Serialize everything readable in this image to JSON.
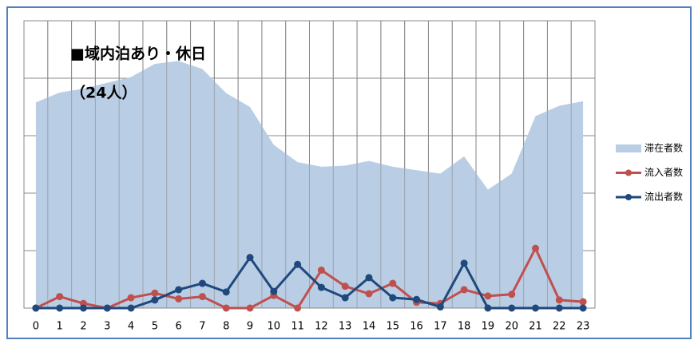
{
  "chart_data": {
    "type": "area-line",
    "title": "■域内泊あり・休日",
    "subtitle": "（24人）",
    "categories": [
      "0",
      "1",
      "2",
      "3",
      "4",
      "5",
      "6",
      "7",
      "8",
      "9",
      "10",
      "11",
      "12",
      "13",
      "14",
      "15",
      "16",
      "17",
      "18",
      "19",
      "20",
      "21",
      "22",
      "23"
    ],
    "series": [
      {
        "name": "滞在者数",
        "type": "area",
        "color": "#b9cde5",
        "values": [
          17.9,
          18.75,
          19.1,
          19.6,
          20.1,
          21.25,
          21.5,
          20.8,
          18.7,
          17.5,
          14.2,
          12.7,
          12.3,
          12.4,
          12.8,
          12.3,
          12.0,
          11.7,
          13.2,
          10.3,
          11.7,
          16.7,
          17.6,
          18.0
        ]
      },
      {
        "name": "流入者数",
        "type": "line",
        "color": "#c0504d",
        "values": [
          0,
          1.0,
          0.4,
          0,
          0.9,
          1.3,
          0.8,
          1.0,
          0,
          0,
          1.1,
          0,
          3.3,
          1.9,
          1.25,
          2.15,
          0.5,
          0.4,
          1.6,
          1.05,
          1.2,
          5.2,
          0.7,
          0.55
        ]
      },
      {
        "name": "流出者数",
        "type": "line",
        "color": "#1f497d",
        "values": [
          0,
          0,
          0,
          0,
          0,
          0.7,
          1.6,
          2.15,
          1.4,
          4.4,
          1.45,
          3.8,
          1.8,
          0.9,
          2.65,
          0.9,
          0.75,
          0.1,
          3.9,
          0,
          0,
          0,
          0,
          0
        ]
      }
    ],
    "ylim": [
      0,
      25
    ],
    "yticks": [
      0,
      5,
      10,
      15,
      20,
      25
    ],
    "grid": true
  }
}
